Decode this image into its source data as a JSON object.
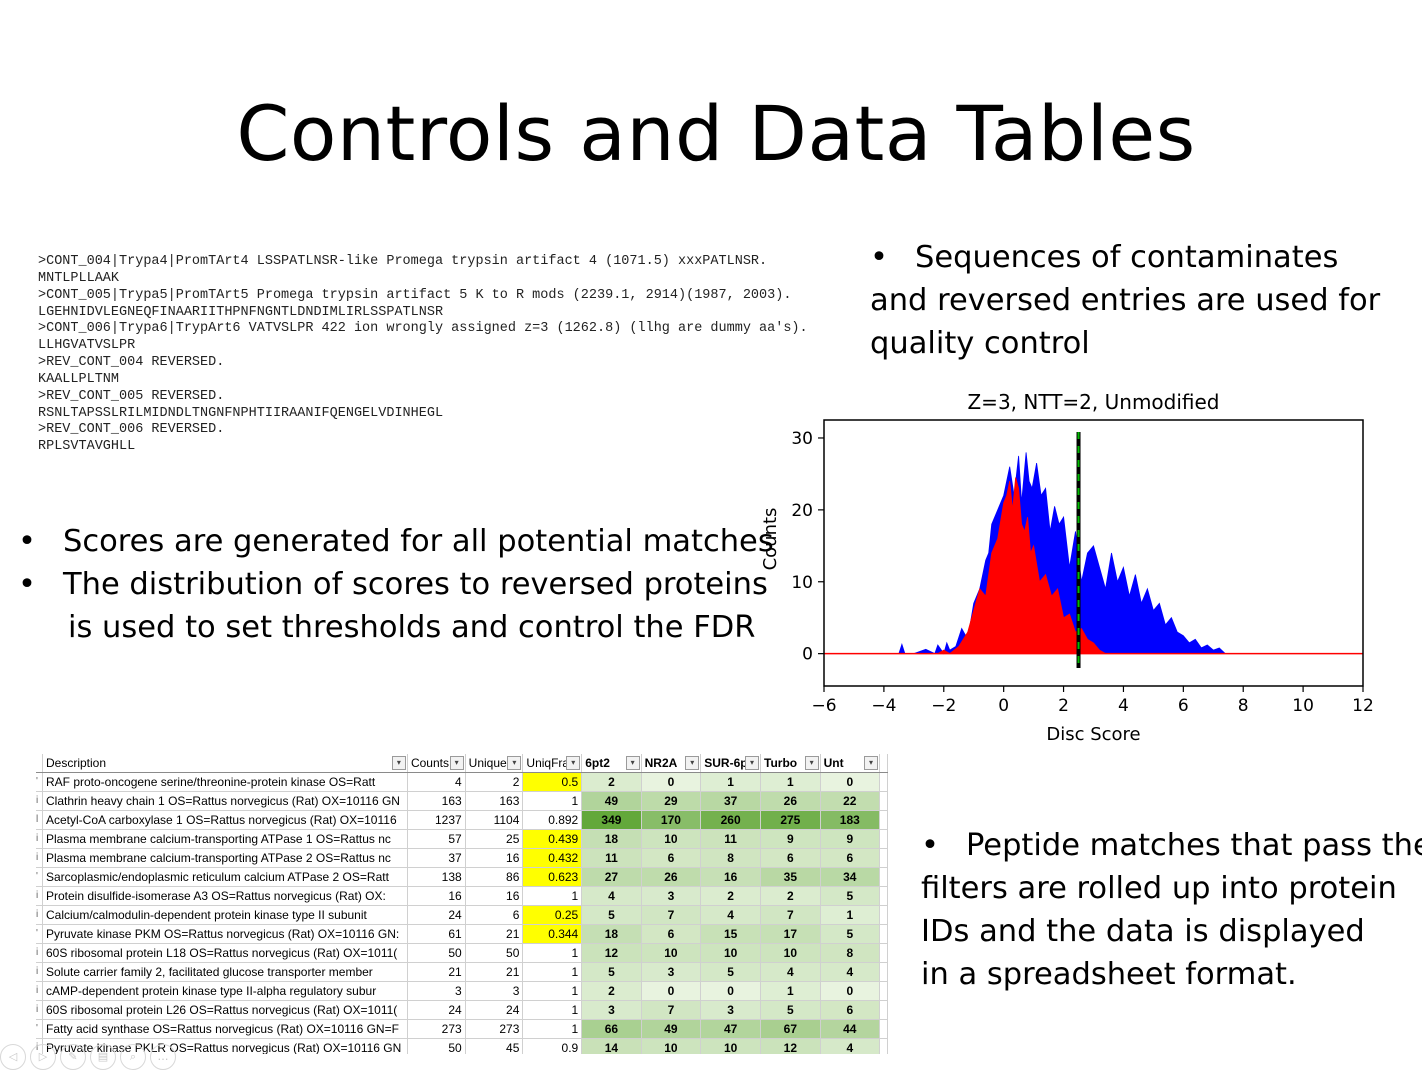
{
  "title": "Controls and Data Tables",
  "sequence_lines": [
    ">CONT_004|Trypa4|PromTArt4 LSSPATLNSR-like Promega trypsin artifact 4 (1071.5) xxxPATLNSR.",
    "MNTLPLLAAK",
    ">CONT_005|Trypa5|PromTArt5 Promega trypsin artifact 5 K to R mods (2239.1, 2914)(1987, 2003).",
    "LGEHNIDVLEGNEQFINAARIITHPNFNGNTLDNDIMLIRLSSPATLNSR",
    ">CONT_006|Trypa6|TrypArt6 VATVSLPR 422 ion wrongly assigned z=3 (1262.8) (llhg are dummy aa's).",
    "LLHGVATVSLPR",
    ">REV_CONT_004 REVERSED.",
    "KAALLPLTNM",
    ">REV_CONT_005 REVERSED.",
    "RSNLTAPSSLRILMIDNDLTNGNFNPHTIIRAANIFQENGELVDINHEGL",
    ">REV_CONT_006 REVERSED.",
    "RPLSVTAVGHLL"
  ],
  "bullets": {
    "top_right": {
      "lines": [
        "Sequences of contaminates",
        "and reversed entries are used for",
        "quality control"
      ]
    },
    "left": [
      {
        "lines": [
          "Scores are generated for all potential matches"
        ]
      },
      {
        "lines": [
          "The distribution of scores to reversed proteins",
          "is used to set thresholds and control the FDR"
        ]
      }
    ],
    "bottom_right": {
      "lines": [
        "Peptide matches that pass the",
        "filters are rolled up into protein",
        "IDs and the data is displayed",
        "in a spreadsheet format."
      ]
    }
  },
  "chart_data": {
    "type": "area",
    "title": "Z=3, NTT=2, Unmodified",
    "xlabel": "Disc Score",
    "ylabel": "Counts",
    "xlim": [
      -6,
      12
    ],
    "ylim": [
      -4.5,
      32.5
    ],
    "xticks": [
      -6,
      -4,
      -2,
      0,
      2,
      4,
      6,
      8,
      10,
      12
    ],
    "xtick_labels": [
      "−6",
      "−4",
      "−2",
      "0",
      "2",
      "4",
      "6",
      "8",
      "10",
      "12"
    ],
    "yticks": [
      0,
      10,
      20,
      30
    ],
    "threshold_x": 2.5,
    "series": [
      {
        "color": "#0000ff",
        "x": [
          -3.5,
          -3.4,
          -3.3,
          -3.0,
          -2.6,
          -2.3,
          -2.2,
          -2.0,
          -1.9,
          -1.8,
          -1.6,
          -1.4,
          -1.2,
          -1.0,
          -0.8,
          -0.6,
          -0.5,
          -0.4,
          -0.2,
          0.0,
          0.2,
          0.35,
          0.5,
          0.6,
          0.75,
          0.85,
          0.95,
          1.1,
          1.25,
          1.4,
          1.55,
          1.7,
          1.85,
          2.0,
          2.2,
          2.4,
          2.6,
          2.8,
          3.0,
          3.2,
          3.4,
          3.6,
          3.8,
          4.0,
          4.2,
          4.4,
          4.6,
          4.8,
          5.0,
          5.2,
          5.4,
          5.6,
          5.8,
          6.0,
          6.2,
          6.4,
          6.6,
          6.8,
          7.0,
          7.2,
          7.4
        ],
        "y": [
          0,
          1.3,
          0,
          0,
          0.6,
          0,
          1.2,
          0,
          1.5,
          0.5,
          1.0,
          3.5,
          2.0,
          7.0,
          9.0,
          13.0,
          14.0,
          18.0,
          20.0,
          22.0,
          26.0,
          22.0,
          27.5,
          21.0,
          28.0,
          24.0,
          23.0,
          26.5,
          22.0,
          23.0,
          17.0,
          20.5,
          18.0,
          19.0,
          12.0,
          17.0,
          10.0,
          14.0,
          15.0,
          12.0,
          9.0,
          14.0,
          10.0,
          12.0,
          8.0,
          11.0,
          7.0,
          9.0,
          6.0,
          7.0,
          4.0,
          5.0,
          3.0,
          2.5,
          1.5,
          2.0,
          0.8,
          1.2,
          0.5,
          0.8,
          0
        ]
      },
      {
        "color": "#ff0000",
        "x": [
          -2.2,
          -2.0,
          -1.8,
          -1.5,
          -1.2,
          -1.0,
          -0.8,
          -0.6,
          -0.4,
          -0.2,
          0.0,
          0.1,
          0.2,
          0.3,
          0.4,
          0.5,
          0.6,
          0.7,
          0.8,
          0.9,
          1.0,
          1.2,
          1.4,
          1.6,
          1.8,
          2.0,
          2.2,
          2.4,
          2.6,
          2.8,
          3.0,
          3.2,
          3.4
        ],
        "y": [
          0,
          0.5,
          0,
          1.0,
          3.0,
          6.0,
          9.0,
          8.0,
          14.0,
          16.0,
          21.0,
          22.0,
          24.0,
          20.0,
          24.5,
          23.0,
          18.0,
          17.0,
          19.0,
          14.0,
          15.0,
          10.0,
          11.0,
          8.0,
          9.0,
          5.0,
          5.5,
          3.0,
          3.5,
          2.0,
          1.5,
          0.5,
          0
        ]
      }
    ]
  },
  "spreadsheet": {
    "headers": [
      "Description",
      "Counts",
      "Unique",
      "UniqFra",
      "6pt2",
      "NR2A",
      "SUR-6p",
      "Turbo",
      "Unt"
    ],
    "rows": [
      {
        "mark": "'",
        "desc": "RAF proto-oncogene serine/threonine-protein kinase OS=Ratt",
        "counts": 4,
        "unique": 2,
        "uniqfrac": "0.5",
        "hl": true,
        "v": [
          2,
          0,
          1,
          1,
          0
        ]
      },
      {
        "mark": "i",
        "desc": "Clathrin heavy chain 1 OS=Rattus norvegicus (Rat) OX=10116 GN",
        "counts": 163,
        "unique": 163,
        "uniqfrac": "1",
        "hl": false,
        "v": [
          49,
          29,
          37,
          26,
          22
        ]
      },
      {
        "mark": "l",
        "desc": "Acetyl-CoA carboxylase 1 OS=Rattus norvegicus (Rat) OX=10116",
        "counts": 1237,
        "unique": 1104,
        "uniqfrac": "0.892",
        "hl": false,
        "v": [
          349,
          170,
          260,
          275,
          183
        ]
      },
      {
        "mark": "i",
        "desc": "Plasma membrane calcium-transporting ATPase 1 OS=Rattus nc",
        "counts": 57,
        "unique": 25,
        "uniqfrac": "0.439",
        "hl": true,
        "v": [
          18,
          10,
          11,
          9,
          9
        ]
      },
      {
        "mark": "i",
        "desc": "Plasma membrane calcium-transporting ATPase 2 OS=Rattus nc",
        "counts": 37,
        "unique": 16,
        "uniqfrac": "0.432",
        "hl": true,
        "v": [
          11,
          6,
          8,
          6,
          6
        ]
      },
      {
        "mark": "'",
        "desc": "Sarcoplasmic/endoplasmic reticulum calcium ATPase 2 OS=Ratt",
        "counts": 138,
        "unique": 86,
        "uniqfrac": "0.623",
        "hl": true,
        "v": [
          27,
          26,
          16,
          35,
          34
        ]
      },
      {
        "mark": "i",
        "desc": "Protein disulfide-isomerase A3 OS=Rattus norvegicus (Rat) OX:",
        "counts": 16,
        "unique": 16,
        "uniqfrac": "1",
        "hl": false,
        "v": [
          4,
          3,
          2,
          2,
          5
        ]
      },
      {
        "mark": "i",
        "desc": "Calcium/calmodulin-dependent protein kinase type II subunit",
        "counts": 24,
        "unique": 6,
        "uniqfrac": "0.25",
        "hl": true,
        "v": [
          5,
          7,
          4,
          7,
          1
        ]
      },
      {
        "mark": "'",
        "desc": "Pyruvate kinase PKM OS=Rattus norvegicus (Rat) OX=10116 GN:",
        "counts": 61,
        "unique": 21,
        "uniqfrac": "0.344",
        "hl": true,
        "v": [
          18,
          6,
          15,
          17,
          5
        ]
      },
      {
        "mark": "i",
        "desc": "60S ribosomal protein L18 OS=Rattus norvegicus (Rat) OX=1011(",
        "counts": 50,
        "unique": 50,
        "uniqfrac": "1",
        "hl": false,
        "v": [
          12,
          10,
          10,
          10,
          8
        ]
      },
      {
        "mark": "i",
        "desc": "Solute carrier family 2, facilitated glucose transporter member",
        "counts": 21,
        "unique": 21,
        "uniqfrac": "1",
        "hl": false,
        "v": [
          5,
          3,
          5,
          4,
          4
        ]
      },
      {
        "mark": "i",
        "desc": "cAMP-dependent protein kinase type II-alpha regulatory subur",
        "counts": 3,
        "unique": 3,
        "uniqfrac": "1",
        "hl": false,
        "v": [
          2,
          0,
          0,
          1,
          0
        ]
      },
      {
        "mark": "i",
        "desc": "60S ribosomal protein L26 OS=Rattus norvegicus (Rat) OX=1011(",
        "counts": 24,
        "unique": 24,
        "uniqfrac": "1",
        "hl": false,
        "v": [
          3,
          7,
          3,
          5,
          6
        ]
      },
      {
        "mark": "'",
        "desc": "Fatty acid synthase OS=Rattus norvegicus (Rat) OX=10116 GN=F",
        "counts": 273,
        "unique": 273,
        "uniqfrac": "1",
        "hl": false,
        "v": [
          66,
          49,
          47,
          67,
          44
        ]
      },
      {
        "mark": "i",
        "desc": "Pyruvate kinase PKLR OS=Rattus norvegicus (Rat) OX=10116 GN",
        "counts": 50,
        "unique": 45,
        "uniqfrac": "0.9",
        "hl": false,
        "v": [
          14,
          10,
          10,
          12,
          4
        ]
      }
    ]
  },
  "colors": {
    "highlight": "#ffff00",
    "heat_low": "#e8f3df",
    "heat_high": "#63a83a",
    "threshold_line": "#000000",
    "threshold_dash": "#00bb00"
  },
  "nav_icons": [
    "prev-icon",
    "next-icon",
    "pen-icon",
    "slides-icon",
    "zoom-icon",
    "more-icon"
  ]
}
